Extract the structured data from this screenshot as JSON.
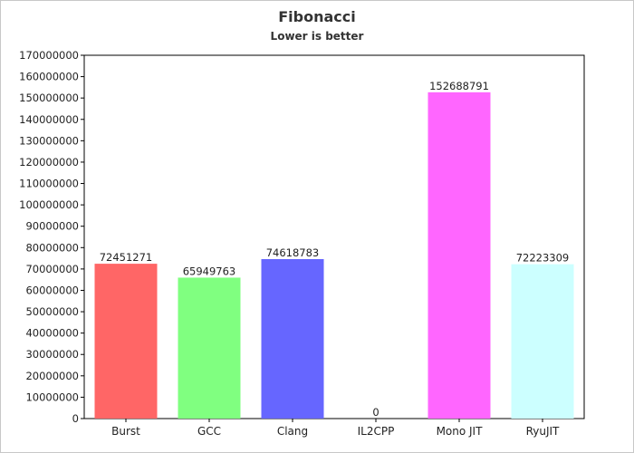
{
  "chart_data": {
    "type": "bar",
    "title": "Fibonacci",
    "subtitle": "Lower is better",
    "xlabel": "",
    "ylabel": "",
    "ylim": [
      0,
      170000000
    ],
    "ytick_step": 10000000,
    "grid": false,
    "legend": "none",
    "categories": [
      "Burst",
      "GCC",
      "Clang",
      "IL2CPP",
      "Mono JIT",
      "RyuJIT"
    ],
    "values": [
      72451271,
      65949763,
      74618783,
      0,
      152688791,
      72223309
    ],
    "colors": [
      "#ff6666",
      "#80ff80",
      "#6666ff",
      "#ffff80",
      "#ff66ff",
      "#ccffff"
    ]
  }
}
